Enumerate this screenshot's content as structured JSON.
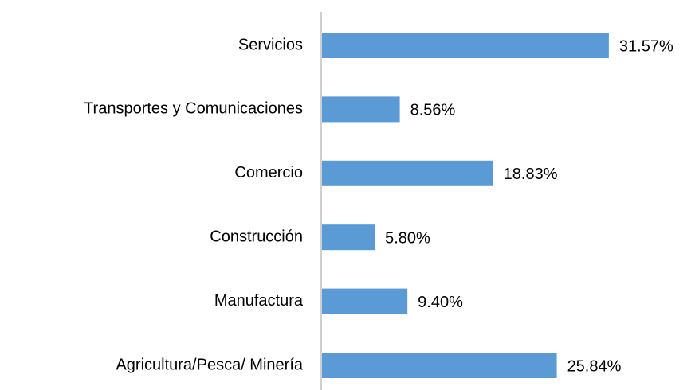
{
  "chart_data": {
    "type": "barh",
    "categories": [
      "Servicios",
      "Transportes y Comunicaciones",
      "Comercio",
      "Construcción",
      "Manufactura",
      "Agricultura/Pesca/ Minería"
    ],
    "values": [
      31.57,
      8.56,
      18.83,
      5.8,
      9.4,
      25.84
    ],
    "value_labels": [
      "31.57%",
      "8.56%",
      "18.83%",
      "5.80%",
      "9.40%",
      "25.84%"
    ],
    "color": "#5b9bd5"
  }
}
